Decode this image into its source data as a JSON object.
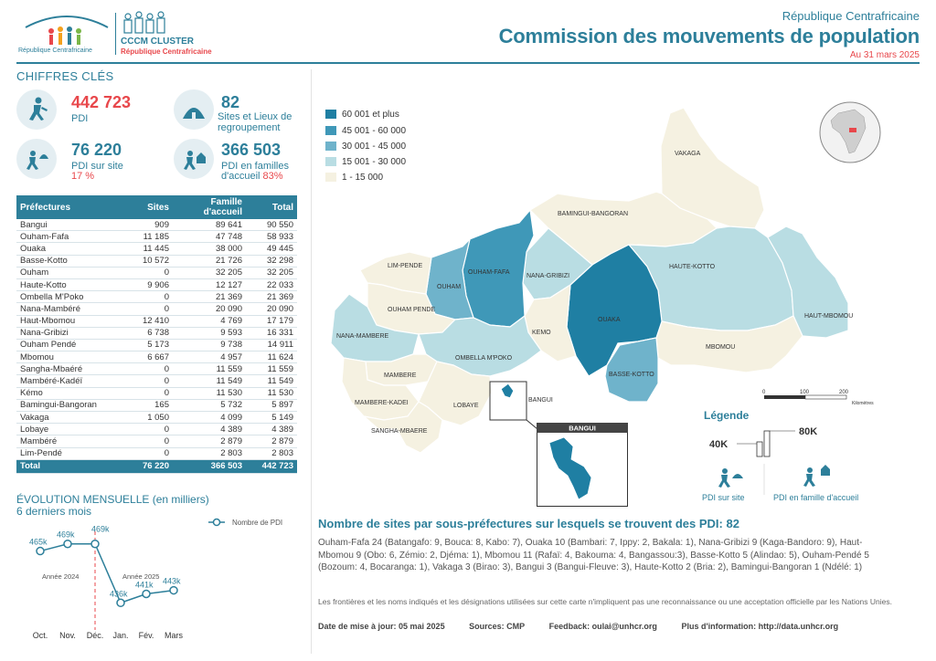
{
  "header": {
    "logo_left_text": "République Centrafricaine",
    "logo_right_line1": "CCCM CLUSTER",
    "logo_right_line2": "République Centrafricaine",
    "country": "République Centrafricaine",
    "title": "Commission des mouvements de population",
    "date": "Au 31 mars 2025"
  },
  "key_figures": {
    "section_title": "CHIFFRES CLÉS",
    "pdi": {
      "value": "442 723",
      "label": "PDI",
      "icon": "person-running-icon"
    },
    "sites": {
      "value": "82",
      "label1": "Sites et Lieux de",
      "label2": "regroupement",
      "icon": "shelter-icon"
    },
    "pdi_sites": {
      "value": "76 220",
      "label": "PDI sur site",
      "pct": "17 %",
      "icon": "person-running-shelter-icon"
    },
    "pdi_families": {
      "value": "366 503",
      "label1": "PDI en familles",
      "label2": "d'accueil",
      "pct": "83%",
      "icon": "person-running-house-icon"
    }
  },
  "table": {
    "headers": [
      "Préfectures",
      "Sites",
      "Famille d'accueil",
      "Total"
    ],
    "rows": [
      [
        "Bangui",
        "909",
        "89 641",
        "90 550"
      ],
      [
        "Ouham-Fafa",
        "11 185",
        "47 748",
        "58 933"
      ],
      [
        "Ouaka",
        "11 445",
        "38 000",
        "49 445"
      ],
      [
        "Basse-Kotto",
        "10 572",
        "21 726",
        "32 298"
      ],
      [
        "Ouham",
        "0",
        "32 205",
        "32 205"
      ],
      [
        "Haute-Kotto",
        "9 906",
        "12 127",
        "22 033"
      ],
      [
        "Ombella M'Poko",
        "0",
        "21 369",
        "21 369"
      ],
      [
        "Nana-Mambéré",
        "0",
        "20 090",
        "20 090"
      ],
      [
        "Haut-Mbomou",
        "12 410",
        "4 769",
        "17 179"
      ],
      [
        "Nana-Gribizi",
        "6 738",
        "9 593",
        "16 331"
      ],
      [
        "Ouham Pendé",
        "5 173",
        "9 738",
        "14 911"
      ],
      [
        "Mbomou",
        "6 667",
        "4 957",
        "11 624"
      ],
      [
        "Sangha-Mbaéré",
        "0",
        "11 559",
        "11 559"
      ],
      [
        "Mambéré-Kadéï",
        "0",
        "11 549",
        "11 549"
      ],
      [
        "Kémo",
        "0",
        "11 530",
        "11 530"
      ],
      [
        "Bamingui-Bangoran",
        "165",
        "5 732",
        "5 897"
      ],
      [
        "Vakaga",
        "1 050",
        "4 099",
        "5 149"
      ],
      [
        "Lobaye",
        "0",
        "4 389",
        "4 389"
      ],
      [
        "Mambéré",
        "0",
        "2 879",
        "2 879"
      ],
      [
        "Lim-Pendé",
        "0",
        "2 803",
        "2 803"
      ]
    ],
    "total": [
      "Total",
      "76 220",
      "366 503",
      "442 723"
    ]
  },
  "evolution": {
    "title": "ÉVOLUTION MENSUELLE (en milliers)",
    "subtitle": "6 derniers mois",
    "legend": "Nombre de PDI",
    "year_2024": "Année 2024",
    "year_2025": "Année 2025"
  },
  "chart_data": {
    "type": "line",
    "x": [
      "Oct.",
      "Nov.",
      "Déc.",
      "Jan.",
      "Fév.",
      "Mars"
    ],
    "series": [
      {
        "name": "Nombre de PDI",
        "values": [
          465,
          469,
          469,
          436,
          441,
          443
        ]
      }
    ],
    "data_labels": [
      "465k",
      "469k",
      "469k",
      "436k",
      "441k",
      "443k"
    ],
    "title": "ÉVOLUTION MENSUELLE (en milliers)",
    "subtitle": "6 derniers mois",
    "legend": "top-right"
  },
  "map": {
    "legend_classes": [
      {
        "label": "60 001 et plus",
        "color": "#1f7fa3"
      },
      {
        "label": "45 001 - 60 000",
        "color": "#3f98b8"
      },
      {
        "label": "30 001 - 45 000",
        "color": "#6fb3cb"
      },
      {
        "label": "15 001 - 30 000",
        "color": "#b9dde3"
      },
      {
        "label": "1 - 15 000",
        "color": "#f5f1e1"
      }
    ],
    "labels": {
      "vakaga": "VAKAGA",
      "bamingui": "BAMINGUI-BANGORAN",
      "limpende": "LIM-PENDE",
      "ouhamfafa": "OUHAM-FAFA",
      "ouham": "OUHAM",
      "nanagribizi": "NANA-GRIBIZI",
      "hautekotto": "HAUTE-KOTTO",
      "hautmbomou": "HAUT-MBOMOU",
      "ouhampende": "OUHAM PENDE",
      "ouaka": "OUAKA",
      "kemo": "KEMO",
      "nanamambere": "NANA-MAMBERE",
      "ombella": "OMBELLA M'POKO",
      "mbomou": "MBOMOU",
      "bassekotto": "BASSE-KOTTO",
      "mambere": "MAMBERE",
      "mamberekadei": "MAMBERE-KADEI",
      "lobaye": "LOBAYE",
      "bangui": "BANGUI",
      "sangha": "SANGHA-MBAERE"
    },
    "inset_title": "BANGUI",
    "scale": {
      "t0": "0",
      "t1": "100",
      "t2": "200",
      "unit": "Kilomètres"
    },
    "legende_title": "Légende",
    "legende_80k": "80K",
    "legende_40k": "40K",
    "legende_sites": "PDI sur site",
    "legende_families": "PDI en famille d'accueil"
  },
  "sites_section": {
    "title": "Nombre de sites par sous-préfectures sur lesquels se trouvent des PDI: 82",
    "text": "Ouham-Fafa 24 (Batangafo: 9, Bouca: 8, Kabo: 7), Ouaka 10 (Bambari: 7, Ippy: 2, Bakala: 1), Nana-Gribizi 9 (Kaga-Bandoro: 9), Haut-Mbomou 9 (Obo: 6, Zémio: 2, Djéma: 1), Mbomou 11 (Rafaï: 4, Bakouma: 4, Bangassou:3), Basse-Kotto 5 (Alindao: 5), Ouham-Pendé 5 (Bozoum: 4, Bocaranga: 1), Vakaga 3 (Birao: 3), Bangui 3 (Bangui-Fleuve: 3), Haute-Kotto 2 (Bria: 2), Bamingui-Bangoran 1 (Ndélé: 1)",
    "disclaimer": "Les frontières et les noms indiqués et les désignations utilisées sur cette carte n'impliquent pas une reconnaissance ou une acceptation officielle par les Nations Unies."
  },
  "footer": {
    "date": "Date de mise à jour:  05 mai 2025",
    "sources": "Sources: CMP",
    "feedback": "Feedback: oulai@unhcr.org",
    "info": "Plus d'information: http://data.unhcr.org"
  }
}
